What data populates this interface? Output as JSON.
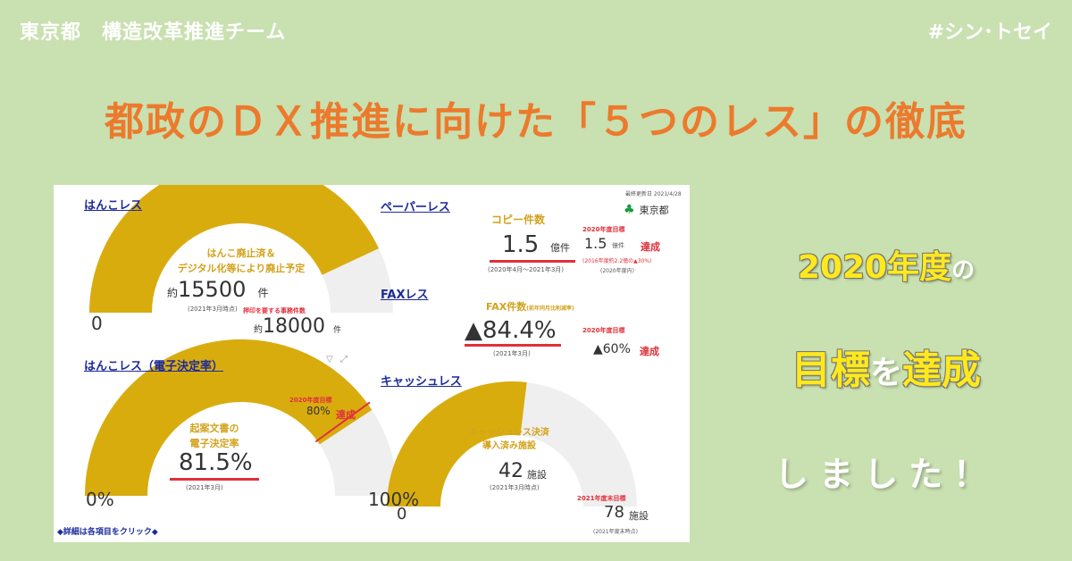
{
  "header": {
    "org": "東京都　構造改革推進チーム",
    "hashtag": "#シン･トセイ"
  },
  "headline": "都政のＤＸ推進に向けた「５つのレス」の徹底",
  "side": {
    "line1a": "2020年度",
    "line1b": "の",
    "line2a": "目標",
    "line2b": "を",
    "line2c": "達成",
    "line3": "しました！"
  },
  "dashboard": {
    "updated": "最終更新日 2021/4/28",
    "logo": "東京都",
    "hanko": {
      "title": "はんこレス",
      "label1": "はんこ廃止済＆",
      "label2": "デジタル化等により廃止予定",
      "prefix": "約",
      "value": "15500",
      "unit": "件",
      "asof": "(2021年3月時点)",
      "min": "0",
      "target_label": "押印を要する事務件数",
      "target_prefix": "約",
      "target": "18000",
      "target_unit": "件",
      "ratio": 0.861
    },
    "esign": {
      "title": "はんこレス（電子決定率）",
      "label1": "起案文書の",
      "label2": "電子決定率",
      "value": "81.5%",
      "asof": "(2021年3月)",
      "min": "0%",
      "max": "100%",
      "goal_label": "2020年度目標",
      "goal": "80%",
      "achieved": "達成",
      "ratio": 0.815,
      "goal_ratio": 0.8
    },
    "paper": {
      "title": "ペーパーレス",
      "label": "コピー件数",
      "value": "1.5",
      "unit": "億件",
      "period": "(2020年4月～2021年3月)",
      "goal_label": "2020年度目標",
      "goal": "1.5",
      "goal_unit": "億件",
      "goal_note": "(2016年度約2.2億の▲30%)",
      "goal_note2": "(2020年度内)",
      "achieved": "達成"
    },
    "fax": {
      "title": "FAXレス",
      "label": "FAX件数",
      "label_note": "(前年同月比削減率)",
      "value": "▲84.4%",
      "asof": "(2021年3月)",
      "goal_label": "2020年度目標",
      "goal": "▲60%",
      "achieved": "達成"
    },
    "cash": {
      "title": "キャッシュレス",
      "label1": "キャッシュレス決済",
      "label2": "導入済み施設",
      "value": "42",
      "unit": "施設",
      "asof": "(2021年3月時点)",
      "min": "0",
      "target_label": "2021年度末目標",
      "target": "78",
      "target_unit": "施設",
      "target_asof": "(2021年度末時点)",
      "ratio": 0.538
    },
    "footer": "◆詳細は各項目をクリック◆"
  },
  "colors": {
    "bg": "#c9e0b0",
    "gauge": "#d9ac0e",
    "track": "#efefef",
    "headline": "#ec7a2d",
    "accent_red": "#e0303b",
    "link": "#1d2b9a",
    "side_yellow": "#ffe91c"
  }
}
